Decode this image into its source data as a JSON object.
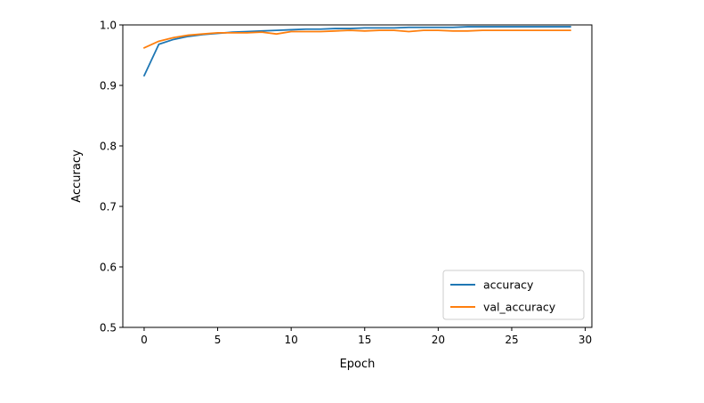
{
  "chart_data": {
    "type": "line",
    "xlabel": "Epoch",
    "ylabel": "Accuracy",
    "xlim": [
      -1.45,
      30.45
    ],
    "ylim": [
      0.5,
      1.0
    ],
    "xticks": [
      0,
      5,
      10,
      15,
      20,
      25,
      30
    ],
    "xtick_labels": [
      "0",
      "5",
      "10",
      "15",
      "20",
      "25",
      "30"
    ],
    "yticks": [
      0.5,
      0.6,
      0.7,
      0.8,
      0.9,
      1.0
    ],
    "ytick_labels": [
      "0.5",
      "0.6",
      "0.7",
      "0.8",
      "0.9",
      "1.0"
    ],
    "grid": false,
    "legend_position": "lower-right",
    "x": [
      0,
      1,
      2,
      3,
      4,
      5,
      6,
      7,
      8,
      9,
      10,
      11,
      12,
      13,
      14,
      15,
      16,
      17,
      18,
      19,
      20,
      21,
      22,
      23,
      24,
      25,
      26,
      27,
      28,
      29
    ],
    "series": [
      {
        "name": "accuracy",
        "color": "#1f77b4",
        "values": [
          0.916,
          0.968,
          0.976,
          0.981,
          0.984,
          0.986,
          0.988,
          0.989,
          0.99,
          0.991,
          0.992,
          0.993,
          0.993,
          0.994,
          0.994,
          0.995,
          0.995,
          0.995,
          0.996,
          0.996,
          0.996,
          0.996,
          0.997,
          0.997,
          0.997,
          0.997,
          0.997,
          0.997,
          0.997,
          0.997
        ]
      },
      {
        "name": "val_accuracy",
        "color": "#ff7f0e",
        "values": [
          0.962,
          0.973,
          0.979,
          0.983,
          0.985,
          0.987,
          0.987,
          0.987,
          0.988,
          0.985,
          0.989,
          0.989,
          0.989,
          0.99,
          0.991,
          0.99,
          0.991,
          0.991,
          0.989,
          0.991,
          0.991,
          0.99,
          0.99,
          0.991,
          0.991,
          0.991,
          0.991,
          0.991,
          0.991,
          0.991
        ]
      }
    ]
  }
}
